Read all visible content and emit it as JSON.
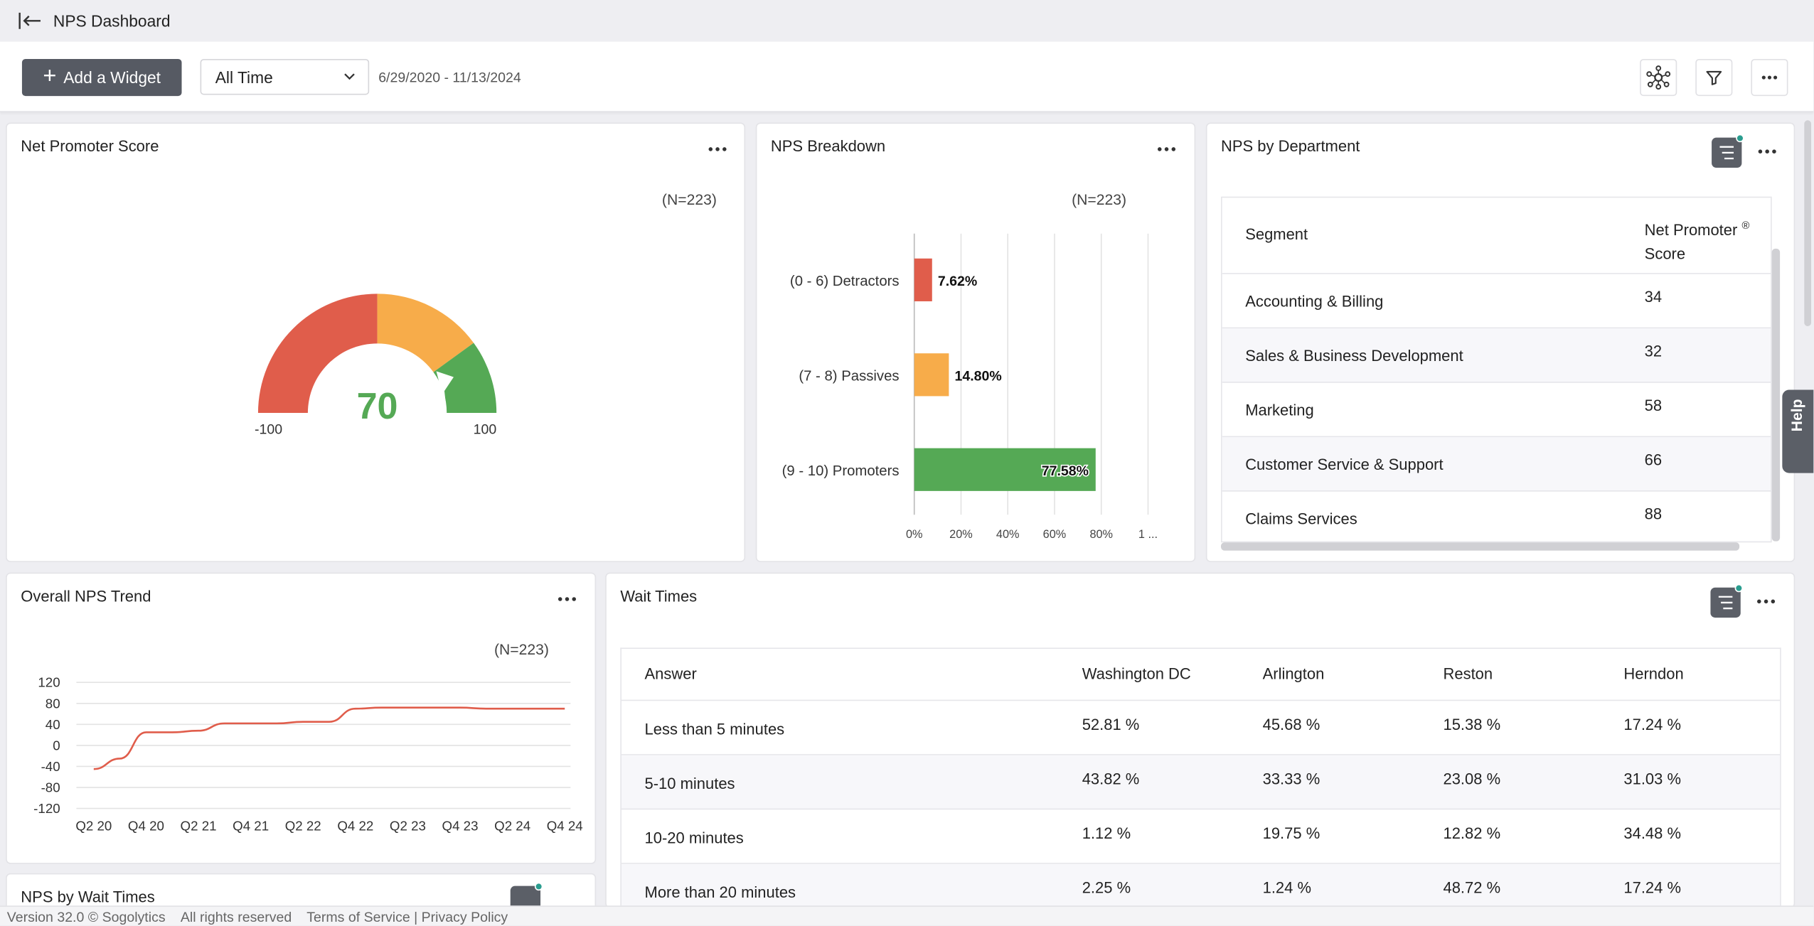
{
  "header": {
    "title": "NPS Dashboard"
  },
  "toolbar": {
    "add_widget_label": "Add a Widget",
    "range_value": "All Time",
    "date_range": "6/29/2020 - 11/13/2024"
  },
  "nps_card": {
    "title": "Net Promoter Score",
    "n_label": "(N=223)",
    "score": "70",
    "min_label": "-100",
    "max_label": "100",
    "score_value": 70,
    "colors": {
      "detractor": "#e05d4b",
      "passive": "#f7ac4a",
      "promoter": "#55a955"
    }
  },
  "breakdown_card": {
    "title": "NPS Breakdown",
    "n_label": "(N=223)"
  },
  "department_card": {
    "title": "NPS by Department",
    "col_segment": "Segment",
    "col_score_1": "Net Promoter",
    "col_score_sup": "®",
    "col_score_2": "Score",
    "rows": [
      {
        "segment": "Accounting & Billing",
        "score": "34"
      },
      {
        "segment": "Sales & Business Development",
        "score": "32"
      },
      {
        "segment": "Marketing",
        "score": "58"
      },
      {
        "segment": "Customer Service & Support",
        "score": "66"
      },
      {
        "segment": "Claims Services",
        "score": "88"
      }
    ]
  },
  "trend_card": {
    "title": "Overall NPS Trend",
    "n_label": "(N=223)"
  },
  "wait_card": {
    "title": "Wait Times",
    "columns": [
      "Answer",
      "Washington DC",
      "Arlington",
      "Reston",
      "Herndon"
    ],
    "rows": [
      [
        "Less than 5 minutes",
        "52.81 %",
        "45.68 %",
        "15.38 %",
        "17.24 %"
      ],
      [
        "5-10 minutes",
        "43.82 %",
        "33.33 %",
        "23.08 %",
        "31.03 %"
      ],
      [
        "10-20 minutes",
        "1.12 %",
        "19.75 %",
        "12.82 %",
        "34.48 %"
      ],
      [
        "More than 20 minutes",
        "2.25 %",
        "1.24 %",
        "48.72 %",
        "17.24 %"
      ]
    ]
  },
  "wait_nps_card": {
    "title": "NPS by Wait Times"
  },
  "footer": {
    "version": "Version 32.0 © Sogolytics",
    "rights": "All rights reserved",
    "links": "Terms of Service | Privacy Policy"
  },
  "help": {
    "label": "Help"
  },
  "chart_data": [
    {
      "type": "bar",
      "orientation": "horizontal",
      "categories": [
        "(0 - 6) Detractors",
        "(7 - 8) Passives",
        "(9 - 10) Promoters"
      ],
      "values": [
        7.62,
        14.8,
        77.58
      ],
      "data_labels": [
        "7.62%",
        "14.80%",
        "77.58%"
      ],
      "colors": [
        "#e05d4b",
        "#f7ac4a",
        "#55a955"
      ],
      "xticks": [
        "0%",
        "20%",
        "40%",
        "60%",
        "80%",
        "1 ..."
      ],
      "xlim": [
        0,
        100
      ],
      "grid": true
    },
    {
      "type": "line",
      "x": [
        "Q2 20",
        "Q3 20",
        "Q4 20",
        "Q1 21",
        "Q2 21",
        "Q3 21",
        "Q4 21",
        "Q1 22",
        "Q2 22",
        "Q3 22",
        "Q4 22",
        "Q1 23",
        "Q2 23",
        "Q3 23",
        "Q4 23",
        "Q1 24",
        "Q2 24",
        "Q3 24",
        "Q4 24"
      ],
      "xticks": [
        "Q2 20",
        "Q4 20",
        "Q2 21",
        "Q4 21",
        "Q2 22",
        "Q4 22",
        "Q2 23",
        "Q4 23",
        "Q2 24",
        "Q4 24"
      ],
      "series": [
        {
          "values": [
            -45,
            -25,
            25,
            25,
            28,
            42,
            42,
            42,
            45,
            45,
            70,
            72,
            72,
            72,
            72,
            70,
            70,
            70,
            70
          ],
          "color": "#e05d4b"
        }
      ],
      "ylim": [
        -120,
        120
      ],
      "yticks": [
        120,
        80,
        40,
        0,
        -40,
        -80,
        -120
      ],
      "grid": true
    }
  ]
}
